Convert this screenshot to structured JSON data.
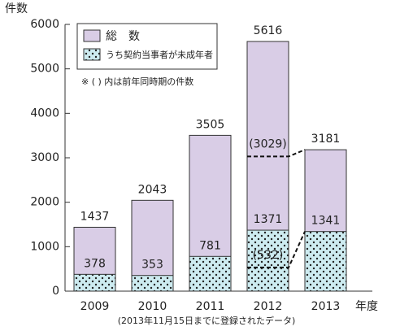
{
  "chart_data": {
    "type": "overlay_bar",
    "y_label": "件数",
    "x_label": "年度",
    "footnote": "(2013年11月15日までに登録されたデータ)",
    "note": "※ ( ) 内は前年同時期の件数",
    "categories": [
      "2009",
      "2010",
      "2011",
      "2012",
      "2013"
    ],
    "series": [
      {
        "name": "総　数",
        "color": "#d9cde6",
        "values": [
          1437,
          2043,
          3505,
          5616,
          3181
        ],
        "prior_values": [
          null,
          null,
          null,
          3029,
          null
        ],
        "prior_value_labels": [
          null,
          null,
          null,
          "(3029)",
          null
        ]
      },
      {
        "name": "うち契約当事者が未成年者",
        "color": "#cdebf0",
        "pattern": "dots",
        "values": [
          378,
          353,
          781,
          1371,
          1341
        ],
        "prior_values": [
          null,
          null,
          null,
          532,
          null
        ],
        "prior_value_labels": [
          null,
          null,
          null,
          "(532)",
          null
        ]
      }
    ],
    "ylim": [
      0,
      6000
    ],
    "yticks": [
      0,
      1000,
      2000,
      3000,
      4000,
      5000,
      6000
    ]
  }
}
